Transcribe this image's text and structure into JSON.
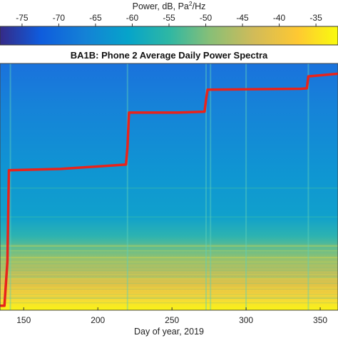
{
  "chart_data": {
    "type": "heatmap",
    "title": "BA1B: Phone 2 Average Daily Power Spectra",
    "xlabel": "Day of year, 2019",
    "ylabel": "",
    "x_ticks": [
      150,
      200,
      250,
      300,
      350
    ],
    "xlim": [
      134,
      362
    ],
    "colorbar": {
      "label": "Power, dB, Pa",
      "label_sup": "2",
      "label_suffix": "/Hz",
      "ticks": [
        -75,
        -70,
        -65,
        -60,
        -55,
        -50,
        -45,
        -40,
        -35
      ],
      "range": [
        -78,
        -32
      ],
      "colormap": "parula",
      "position": "top"
    },
    "series": [
      {
        "color": "#e8231b",
        "points": [
          [
            134,
            0.02
          ],
          [
            137,
            0.02
          ],
          [
            138,
            0.12
          ],
          [
            139,
            0.22
          ],
          [
            140,
            0.63
          ],
          [
            175,
            0.636
          ],
          [
            219,
            0.656
          ],
          [
            220,
            0.735
          ],
          [
            221,
            0.89
          ],
          [
            254,
            0.89
          ],
          [
            272,
            0.894
          ],
          [
            273,
            0.95
          ],
          [
            274,
            0.993
          ],
          [
            337,
            0.997
          ],
          [
            341,
            0.999
          ],
          [
            342,
            1.053
          ],
          [
            362,
            1.065
          ]
        ]
      }
    ],
    "vertical_streaks": [
      141,
      220,
      273,
      276,
      300,
      342
    ],
    "horizontal_bands": [
      0.42,
      0.55
    ]
  }
}
